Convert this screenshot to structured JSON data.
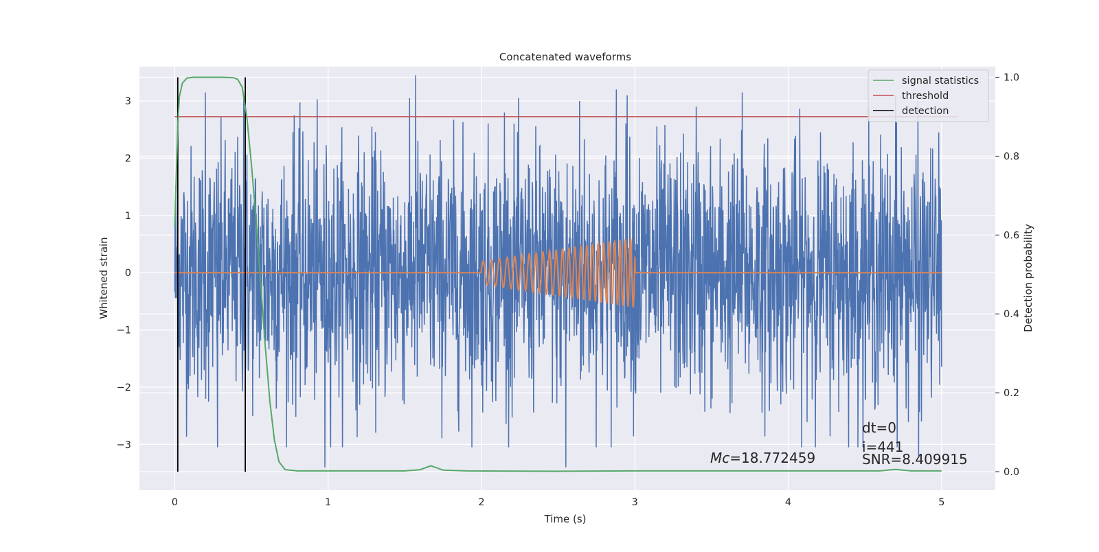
{
  "chart_data": {
    "type": "line",
    "title": "Concatenated waveforms",
    "xlabel": "Time (s)",
    "ylabel": "Whitened strain",
    "ylabel_right": "Detection probability",
    "xlim": [
      -0.23,
      5.35
    ],
    "ylim": [
      -3.8,
      3.6
    ],
    "ylim_right": [
      -0.047,
      1.027
    ],
    "x_ticks": [
      0,
      1,
      2,
      3,
      4,
      5
    ],
    "x_tick_labels": [
      "0",
      "1",
      "2",
      "3",
      "4",
      "5"
    ],
    "y_ticks": [
      -3,
      -2,
      -1,
      0,
      1,
      2,
      3
    ],
    "y_tick_labels": [
      "−3",
      "−2",
      "−1",
      "0",
      "1",
      "2",
      "3"
    ],
    "y2_ticks": [
      0.0,
      0.2,
      0.4,
      0.6,
      0.8,
      1.0
    ],
    "y2_tick_labels": [
      "0.0",
      "0.2",
      "0.4",
      "0.6",
      "0.8",
      "1.0"
    ],
    "grid": true,
    "legend": {
      "position": "top-right",
      "entries": [
        {
          "label": "signal statistics",
          "color": "#55a868"
        },
        {
          "label": "threshold",
          "color": "#c44e52"
        },
        {
          "label": "detection",
          "color": "#000000"
        }
      ]
    },
    "series": [
      {
        "name": "",
        "axis": "left",
        "color": "#4c72b0",
        "kind": "noise",
        "x_range": [
          0,
          5
        ],
        "typical_abs": 1.4,
        "peak_min": -3.4,
        "peak_max": 3.45,
        "spikes": [
          [
            0.2,
            3.15
          ],
          [
            0.45,
            3.05
          ],
          [
            0.78,
            2.75
          ],
          [
            1.57,
            3.45
          ],
          [
            2.15,
            2.8
          ],
          [
            2.55,
            -3.4
          ],
          [
            2.64,
            3.0
          ],
          [
            2.88,
            3.2
          ],
          [
            2.95,
            3.1
          ],
          [
            3.7,
            3.15
          ],
          [
            3.4,
            2.9
          ],
          [
            4.7,
            3.1
          ],
          [
            0.98,
            -3.4
          ],
          [
            0.28,
            -3.05
          ],
          [
            4.85,
            -3.2
          ]
        ]
      },
      {
        "name": "",
        "axis": "left",
        "color": "#dd8452",
        "kind": "chirp",
        "x": [
          0,
          2,
          3,
          5
        ],
        "y": [
          0,
          0,
          0,
          0
        ],
        "chirp_start": 2.0,
        "chirp_end": 3.0,
        "amp_start": 0.2,
        "amp_end": 0.62,
        "freq_start": 18,
        "freq_end": 30
      },
      {
        "name": "signal statistics",
        "axis": "right",
        "color": "#55a868",
        "x": [
          0.0,
          0.01,
          0.02,
          0.03,
          0.05,
          0.08,
          0.12,
          0.2,
          0.3,
          0.38,
          0.41,
          0.44,
          0.47,
          0.5,
          0.53,
          0.56,
          0.59,
          0.62,
          0.65,
          0.68,
          0.72,
          0.8,
          1.0,
          1.5,
          1.6,
          1.67,
          1.75,
          1.9,
          2.5,
          3.0,
          4.0,
          4.6,
          4.7,
          4.8,
          5.0
        ],
        "y": [
          0.62,
          0.75,
          0.88,
          0.95,
          0.985,
          0.998,
          1.0,
          1.0,
          1.0,
          0.999,
          0.995,
          0.975,
          0.9,
          0.78,
          0.64,
          0.48,
          0.32,
          0.18,
          0.08,
          0.025,
          0.005,
          0.002,
          0.002,
          0.002,
          0.005,
          0.015,
          0.004,
          0.002,
          0.001,
          0.002,
          0.002,
          0.002,
          0.006,
          0.002,
          0.002
        ]
      },
      {
        "name": "threshold",
        "axis": "right",
        "color": "#c44e52",
        "x": [
          0.0,
          5.1
        ],
        "y": [
          0.9,
          0.9
        ]
      },
      {
        "name": "detection",
        "axis": "right",
        "color": "#000000",
        "kind": "vlines",
        "x": [
          0.02,
          0.46
        ],
        "y_range": [
          0.0,
          1.0
        ]
      }
    ],
    "annotations": [
      {
        "label": "Mc",
        "text": "=18.772459"
      },
      {
        "text": "dt=0"
      },
      {
        "text": "i=441"
      },
      {
        "text": "SNR=8.409915"
      }
    ]
  }
}
